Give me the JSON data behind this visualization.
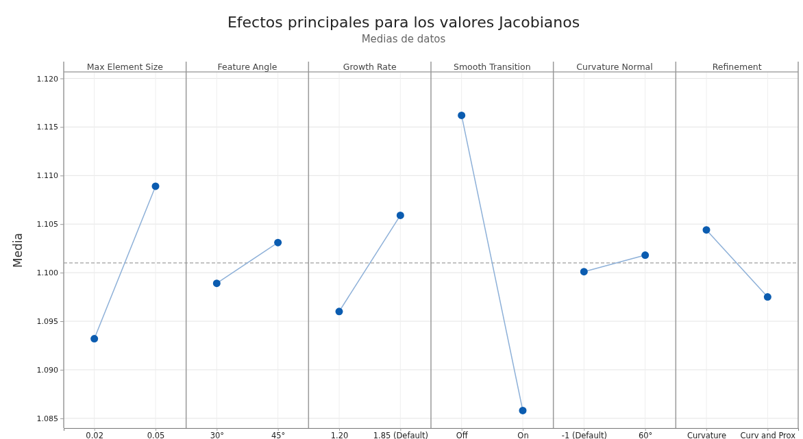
{
  "chart_data": {
    "type": "line",
    "title": "Efectos principales para los valores Jacobianos",
    "subtitle": "Medias de datos",
    "ylabel": "Media",
    "categories": [
      "0.02",
      "0.05",
      "30°",
      "45°",
      "1.20",
      "1.85 (Default)",
      "Off",
      "On",
      "-1 (Default)",
      "60°",
      "Curvature",
      "Curv and Prox"
    ],
    "annotations": [
      "Max Element Size",
      "Feature Angle",
      "Growth Rate",
      "Smooth Transition",
      "Curvature Normal",
      "Refinement"
    ],
    "series": [
      {
        "color": "#0b5cb0",
        "values": [
          1.0932,
          1.1089,
          null,
          null,
          null,
          null,
          null,
          null,
          null,
          null,
          null,
          null
        ]
      },
      {
        "color": "#0b5cb0",
        "values": [
          null,
          null,
          1.0989,
          1.1031,
          null,
          null,
          null,
          null,
          null,
          null,
          null,
          null
        ]
      },
      {
        "color": "#0b5cb0",
        "values": [
          null,
          null,
          null,
          null,
          1.096,
          1.1059,
          null,
          null,
          null,
          null,
          null,
          null
        ]
      },
      {
        "color": "#0b5cb0",
        "values": [
          null,
          null,
          null,
          null,
          null,
          null,
          1.1162,
          1.0858,
          null,
          null,
          null,
          null
        ]
      },
      {
        "color": "#0b5cb0",
        "values": [
          null,
          null,
          null,
          null,
          null,
          null,
          null,
          null,
          1.1001,
          1.1018,
          null,
          null
        ]
      },
      {
        "color": "#0b5cb0",
        "values": [
          null,
          null,
          null,
          null,
          null,
          null,
          null,
          null,
          null,
          null,
          1.1044,
          1.0975
        ]
      }
    ],
    "ylim": [
      1.084,
      1.1206
    ],
    "yticks": [
      {
        "value": 1.085,
        "label": "1.085"
      },
      {
        "value": 1.09,
        "label": "1.090"
      },
      {
        "value": 1.095,
        "label": "1.095"
      },
      {
        "value": 1.1,
        "label": "1.100"
      },
      {
        "value": 1.105,
        "label": "1.105"
      },
      {
        "value": 1.11,
        "label": "1.110"
      },
      {
        "value": 1.115,
        "label": "1.115"
      },
      {
        "value": 1.12,
        "label": "1.120"
      }
    ],
    "grid": true,
    "marker": "circle",
    "ref_lines": [
      {
        "axis": "y",
        "value": 1.101,
        "line_style": "dashed"
      }
    ]
  }
}
